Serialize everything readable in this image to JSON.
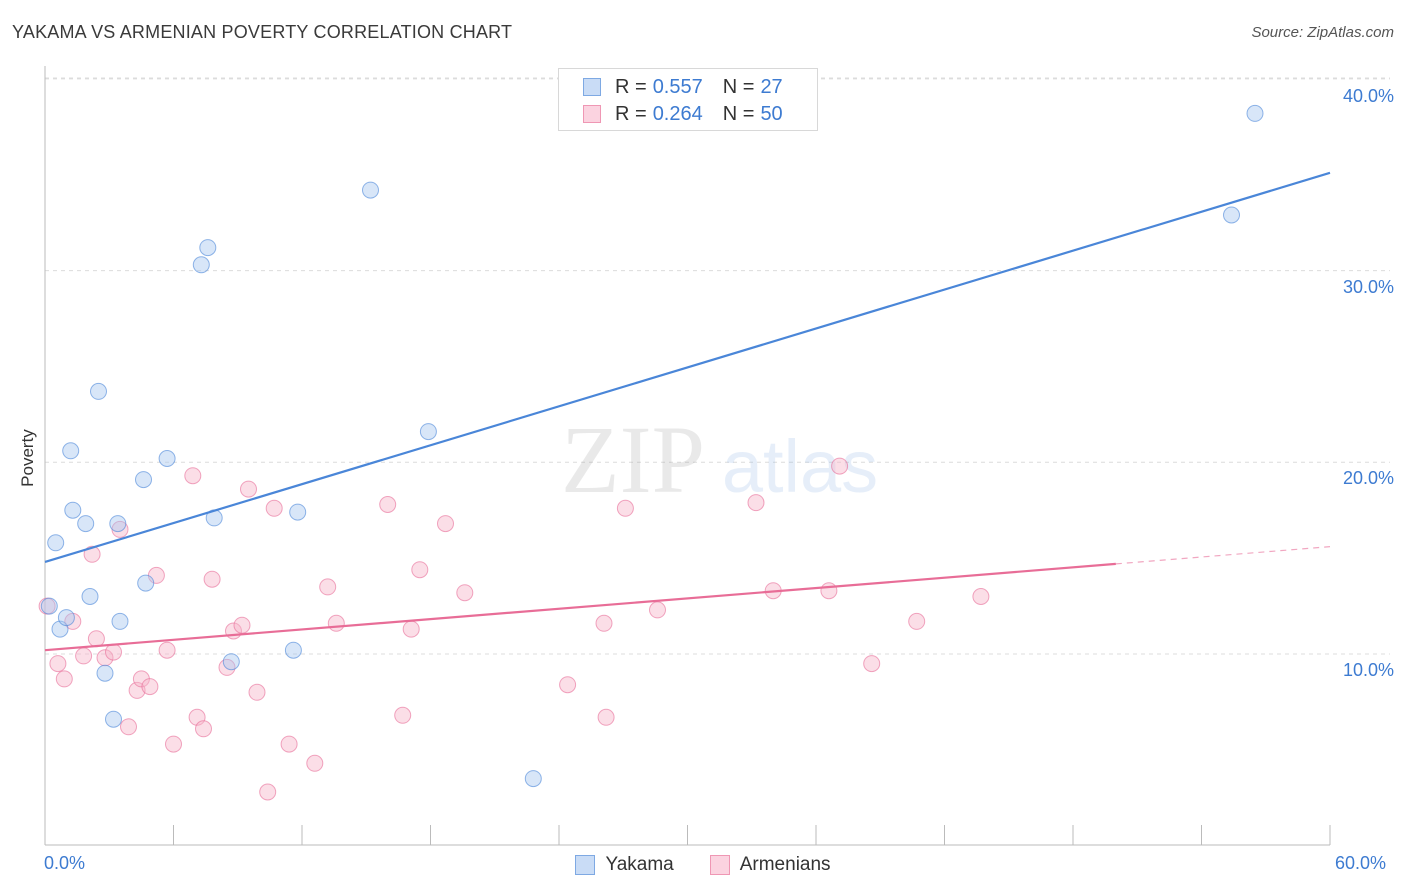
{
  "header": {
    "title": "YAKAMA VS ARMENIAN POVERTY CORRELATION CHART",
    "source": "Source: ZipAtlas.com"
  },
  "watermark": {
    "zip": "ZIP",
    "atlas": "atlas"
  },
  "legend_top": {
    "rows": [
      {
        "r_label": "R =",
        "r_value": "0.557",
        "n_label": "N =",
        "n_value": "27",
        "color": "#a9c8f0"
      },
      {
        "r_label": "R =",
        "r_value": "0.264",
        "n_label": "N =",
        "n_value": "50",
        "color": "#f7b5c9"
      }
    ]
  },
  "legend_bottom": {
    "items": [
      "Yakama",
      "Armenians"
    ]
  },
  "axis_labels": {
    "x_min": "0.0%",
    "x_max": "60.0%",
    "y_ticks": [
      "10.0%",
      "20.0%",
      "30.0%",
      "40.0%"
    ],
    "ylabel": "Poverty"
  },
  "chart_data": {
    "type": "scatter",
    "title": "YAKAMA VS ARMENIAN POVERTY CORRELATION CHART",
    "xlabel": "",
    "ylabel": "Poverty",
    "xlim": [
      0,
      60
    ],
    "ylim": [
      0,
      41
    ],
    "y_ticks": [
      10,
      20,
      30,
      40
    ],
    "grid": true,
    "legend_position": "top-center",
    "series": [
      {
        "name": "Yakama",
        "color": "#4a86d8",
        "fill": "#a9c8f0",
        "R": 0.557,
        "N": 27,
        "trend": {
          "x": [
            0,
            60
          ],
          "y": [
            14.8,
            35.1
          ]
        },
        "points": [
          [
            0.5,
            15.8
          ],
          [
            1.2,
            20.6
          ],
          [
            1.3,
            17.5
          ],
          [
            0.7,
            11.3
          ],
          [
            1.0,
            11.9
          ],
          [
            1.9,
            16.8
          ],
          [
            2.5,
            23.7
          ],
          [
            2.1,
            13.0
          ],
          [
            2.8,
            9.0
          ],
          [
            3.2,
            6.6
          ],
          [
            3.5,
            11.7
          ],
          [
            3.4,
            16.8
          ],
          [
            4.6,
            19.1
          ],
          [
            4.7,
            13.7
          ],
          [
            5.7,
            20.2
          ],
          [
            7.3,
            30.3
          ],
          [
            7.6,
            31.2
          ],
          [
            7.9,
            17.1
          ],
          [
            8.7,
            9.6
          ],
          [
            11.6,
            10.2
          ],
          [
            11.8,
            17.4
          ],
          [
            15.2,
            34.2
          ],
          [
            17.9,
            21.6
          ],
          [
            22.8,
            3.5
          ],
          [
            55.4,
            32.9
          ],
          [
            56.5,
            38.2
          ],
          [
            0.2,
            12.5
          ]
        ]
      },
      {
        "name": "Armenians",
        "color": "#e86d97",
        "fill": "#f7b5c9",
        "R": 0.264,
        "N": 50,
        "trend": {
          "x": [
            0,
            50
          ],
          "y": [
            10.2,
            14.7
          ]
        },
        "trend_dashed": {
          "x": [
            50,
            60
          ],
          "y": [
            14.7,
            15.6
          ]
        },
        "points": [
          [
            0.1,
            12.5
          ],
          [
            0.6,
            9.5
          ],
          [
            0.9,
            8.7
          ],
          [
            1.3,
            11.7
          ],
          [
            1.8,
            9.9
          ],
          [
            2.2,
            15.2
          ],
          [
            2.4,
            10.8
          ],
          [
            2.8,
            9.8
          ],
          [
            3.2,
            10.1
          ],
          [
            3.5,
            16.5
          ],
          [
            3.9,
            6.2
          ],
          [
            4.3,
            8.1
          ],
          [
            4.5,
            8.7
          ],
          [
            4.9,
            8.3
          ],
          [
            5.2,
            14.1
          ],
          [
            5.7,
            10.2
          ],
          [
            6.0,
            5.3
          ],
          [
            6.9,
            19.3
          ],
          [
            7.1,
            6.7
          ],
          [
            7.4,
            6.1
          ],
          [
            7.8,
            13.9
          ],
          [
            8.5,
            9.3
          ],
          [
            8.8,
            11.2
          ],
          [
            9.2,
            11.5
          ],
          [
            9.5,
            18.6
          ],
          [
            9.9,
            8.0
          ],
          [
            10.4,
            2.8
          ],
          [
            10.7,
            17.6
          ],
          [
            11.4,
            5.3
          ],
          [
            12.6,
            4.3
          ],
          [
            13.2,
            13.5
          ],
          [
            13.6,
            11.6
          ],
          [
            16.0,
            17.8
          ],
          [
            16.7,
            6.8
          ],
          [
            17.1,
            11.3
          ],
          [
            17.5,
            14.4
          ],
          [
            18.7,
            16.8
          ],
          [
            19.6,
            13.2
          ],
          [
            24.4,
            8.4
          ],
          [
            26.1,
            11.6
          ],
          [
            26.2,
            6.7
          ],
          [
            27.1,
            17.6
          ],
          [
            28.6,
            12.3
          ],
          [
            33.2,
            17.9
          ],
          [
            34.0,
            13.3
          ],
          [
            36.6,
            13.3
          ],
          [
            37.1,
            19.8
          ],
          [
            38.6,
            9.5
          ],
          [
            40.7,
            11.7
          ],
          [
            43.7,
            13.0
          ]
        ]
      }
    ]
  }
}
